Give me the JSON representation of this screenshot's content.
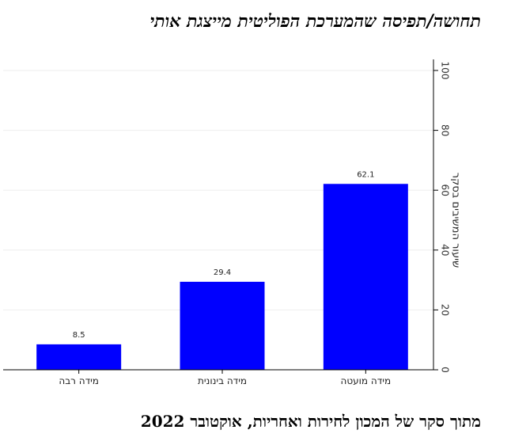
{
  "title": "תחושה/תפיסה שהמערכת הפוליטית מייצגת אותי",
  "source": "מתוך סקר של המכון לחירות ואחריות, אוקטובר 2022",
  "chart_data": {
    "type": "bar",
    "title": "תחושה/תפיסה שהמערכת הפוליטית מייצגת אותי",
    "categories": [
      "מידה רבה",
      "מידה בינונית",
      "מידה מועטה"
    ],
    "values": [
      8.5,
      29.4,
      62.1
    ],
    "value_labels": [
      "8.5",
      "29.4",
      "62.1"
    ],
    "ylabel": "שיעור המשיבים בסקר",
    "ylim": [
      0,
      100
    ],
    "yticks": [
      "0",
      "20",
      "40",
      "60",
      "80",
      "100"
    ],
    "bar_color": "#0000ff",
    "grid": true,
    "grid_color": "#eeeeee",
    "y_axis_side": "right"
  }
}
